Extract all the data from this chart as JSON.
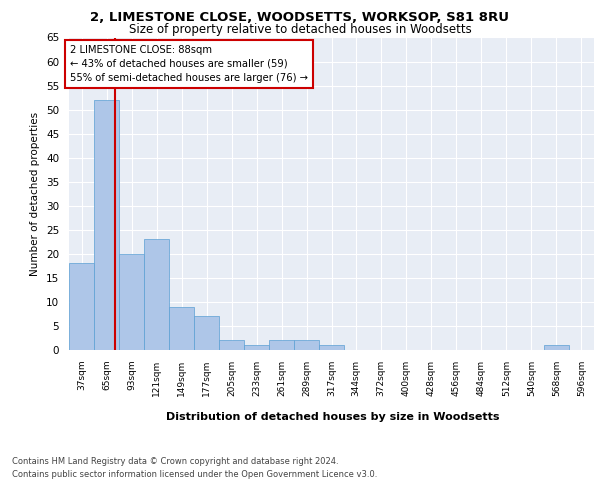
{
  "title": "2, LIMESTONE CLOSE, WOODSETTS, WORKSOP, S81 8RU",
  "subtitle": "Size of property relative to detached houses in Woodsetts",
  "xlabel": "Distribution of detached houses by size in Woodsetts",
  "ylabel": "Number of detached properties",
  "bin_labels": [
    "37sqm",
    "65sqm",
    "93sqm",
    "121sqm",
    "149sqm",
    "177sqm",
    "205sqm",
    "233sqm",
    "261sqm",
    "289sqm",
    "317sqm",
    "344sqm",
    "372sqm",
    "400sqm",
    "428sqm",
    "456sqm",
    "484sqm",
    "512sqm",
    "540sqm",
    "568sqm",
    "596sqm"
  ],
  "bar_values": [
    18,
    52,
    20,
    23,
    9,
    7,
    2,
    1,
    2,
    2,
    1,
    0,
    0,
    0,
    0,
    0,
    0,
    0,
    0,
    1,
    0
  ],
  "bar_color": "#aec6e8",
  "bar_edge_color": "#5a9fd4",
  "marker_value": 88,
  "bin_edges": [
    37,
    65,
    93,
    121,
    149,
    177,
    205,
    233,
    261,
    289,
    317,
    344,
    372,
    400,
    428,
    456,
    484,
    512,
    540,
    568,
    596
  ],
  "marker_line_color": "#cc0000",
  "annotation_text": "2 LIMESTONE CLOSE: 88sqm\n← 43% of detached houses are smaller (59)\n55% of semi-detached houses are larger (76) →",
  "annotation_box_color": "#ffffff",
  "annotation_border_color": "#cc0000",
  "ylim": [
    0,
    65
  ],
  "yticks": [
    0,
    5,
    10,
    15,
    20,
    25,
    30,
    35,
    40,
    45,
    50,
    55,
    60,
    65
  ],
  "background_color": "#e8edf5",
  "footer_line1": "Contains HM Land Registry data © Crown copyright and database right 2024.",
  "footer_line2": "Contains public sector information licensed under the Open Government Licence v3.0."
}
